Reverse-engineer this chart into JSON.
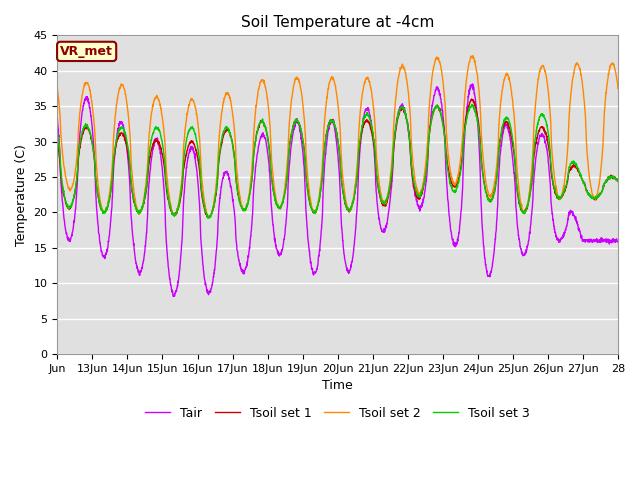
{
  "title": "Soil Temperature at -4cm",
  "xlabel": "Time",
  "ylabel": "Temperature (C)",
  "ylim": [
    0,
    45
  ],
  "yticks": [
    0,
    5,
    10,
    15,
    20,
    25,
    30,
    35,
    40,
    45
  ],
  "annotation_text": "VR_met",
  "annotation_bg": "#FFFFCC",
  "annotation_edge": "#8B0000",
  "annotation_text_color": "#8B0000",
  "series_colors": {
    "Tair": "#CC00FF",
    "Tsoil set 1": "#CC0000",
    "Tsoil set 2": "#FF8800",
    "Tsoil set 3": "#00CC00"
  },
  "line_width": 1.0,
  "bg_color": "#E0E0E0",
  "fig_bg": "#FFFFFF",
  "x_tick_labels": [
    "Jun",
    "13Jun",
    "14Jun",
    "15Jun",
    "16Jun",
    "17Jun",
    "18Jun",
    "19Jun",
    "20Jun",
    "21Jun",
    "22Jun",
    "23Jun",
    "24Jun",
    "25Jun",
    "26Jun",
    "27Jun",
    "28"
  ],
  "x_tick_positions": [
    0,
    1,
    2,
    3,
    4,
    5,
    6,
    7,
    8,
    9,
    10,
    11,
    12,
    13,
    14,
    15,
    16
  ]
}
